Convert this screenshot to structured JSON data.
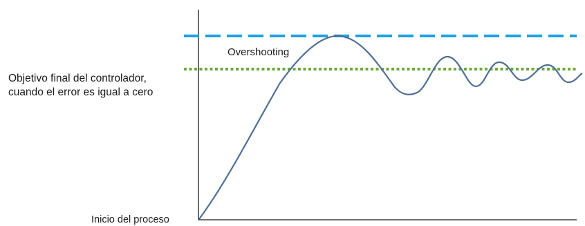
{
  "diagram": {
    "labels": {
      "target": [
        "Objetivo final del controlador,",
        "cuando el error es igual a cero"
      ],
      "start": "Inicio del proceso",
      "overshoot": "Overshooting"
    },
    "colors": {
      "axes": "#1a1a1a",
      "curve": "#4f6f95",
      "overshoot_line": "#1aa3e0",
      "setpoint_line": "#6aaa3a",
      "text": "#1a1a1a"
    },
    "line_styles": {
      "overshoot_line": "dashed",
      "setpoint_line": "dotted"
    }
  }
}
